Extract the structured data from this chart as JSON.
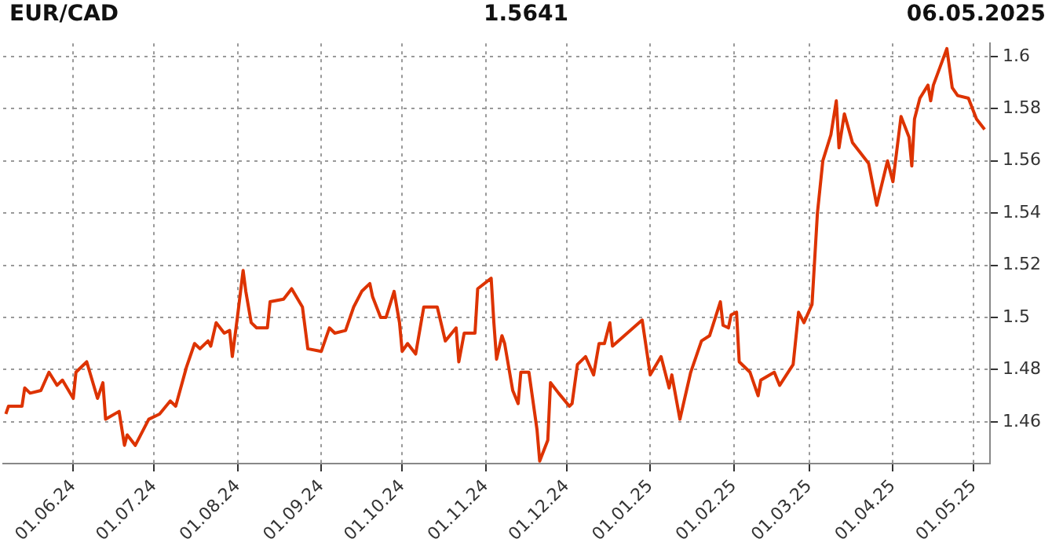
{
  "chart_data": {
    "type": "line",
    "title": "EUR/CAD",
    "subtitle": "1.5641",
    "annotations": [
      "06.05.2025"
    ],
    "x": [
      "2024-05-07",
      "2024-05-08",
      "2024-05-13",
      "2024-05-14",
      "2024-05-16",
      "2024-05-20",
      "2024-05-23",
      "2024-05-26",
      "2024-05-28",
      "2024-06-01",
      "2024-06-02",
      "2024-06-06",
      "2024-06-10",
      "2024-06-12",
      "2024-06-13",
      "2024-06-18",
      "2024-06-20",
      "2024-06-21",
      "2024-06-24",
      "2024-06-29",
      "2024-07-03",
      "2024-07-07",
      "2024-07-09",
      "2024-07-13",
      "2024-07-16",
      "2024-07-18",
      "2024-07-21",
      "2024-07-22",
      "2024-07-24",
      "2024-07-27",
      "2024-07-29",
      "2024-07-30",
      "2024-08-01",
      "2024-08-03",
      "2024-08-04",
      "2024-08-06",
      "2024-08-08",
      "2024-08-12",
      "2024-08-13",
      "2024-08-18",
      "2024-08-21",
      "2024-08-25",
      "2024-08-27",
      "2024-09-01",
      "2024-09-04",
      "2024-09-06",
      "2024-09-10",
      "2024-09-13",
      "2024-09-16",
      "2024-09-19",
      "2024-09-20",
      "2024-09-23",
      "2024-09-25",
      "2024-09-28",
      "2024-09-30",
      "2024-10-01",
      "2024-10-03",
      "2024-10-06",
      "2024-10-09",
      "2024-10-14",
      "2024-10-17",
      "2024-10-21",
      "2024-10-22",
      "2024-10-24",
      "2024-10-28",
      "2024-10-29",
      "2024-11-03",
      "2024-11-04",
      "2024-11-05",
      "2024-11-07",
      "2024-11-08",
      "2024-11-11",
      "2024-11-13",
      "2024-11-14",
      "2024-11-15",
      "2024-11-17",
      "2024-11-20",
      "2024-11-21",
      "2024-11-24",
      "2024-11-25",
      "2024-11-28",
      "2024-12-02",
      "2024-12-03",
      "2024-12-05",
      "2024-12-08",
      "2024-12-11",
      "2024-12-13",
      "2024-12-15",
      "2024-12-17",
      "2024-12-18",
      "2024-12-29",
      "2025-01-01",
      "2025-01-05",
      "2025-01-08",
      "2025-01-09",
      "2025-01-12",
      "2025-01-16",
      "2025-01-20",
      "2025-01-23",
      "2025-01-27",
      "2025-01-28",
      "2025-01-30",
      "2025-01-31",
      "2025-02-02",
      "2025-02-03",
      "2025-02-07",
      "2025-02-10",
      "2025-02-11",
      "2025-02-16",
      "2025-02-18",
      "2025-02-23",
      "2025-02-25",
      "2025-02-27",
      "2025-03-02",
      "2025-03-04",
      "2025-03-06",
      "2025-03-09",
      "2025-03-11",
      "2025-03-12",
      "2025-03-14",
      "2025-03-17",
      "2025-03-23",
      "2025-03-26",
      "2025-03-30",
      "2025-04-01",
      "2025-04-04",
      "2025-04-07",
      "2025-04-08",
      "2025-04-09",
      "2025-04-11",
      "2025-04-14",
      "2025-04-15",
      "2025-04-16",
      "2025-04-21",
      "2025-04-23",
      "2025-04-25",
      "2025-04-29",
      "2025-05-02",
      "2025-05-05"
    ],
    "series": [
      {
        "color": "#dd3300",
        "values": [
          1.463,
          1.466,
          1.466,
          1.473,
          1.471,
          1.472,
          1.479,
          1.474,
          1.476,
          1.469,
          1.479,
          1.483,
          1.469,
          1.475,
          1.461,
          1.464,
          1.451,
          1.455,
          1.451,
          1.461,
          1.463,
          1.468,
          1.466,
          1.481,
          1.49,
          1.488,
          1.491,
          1.489,
          1.498,
          1.494,
          1.495,
          1.485,
          1.501,
          1.518,
          1.51,
          1.498,
          1.496,
          1.496,
          1.506,
          1.507,
          1.511,
          1.504,
          1.488,
          1.487,
          1.496,
          1.494,
          1.495,
          1.504,
          1.51,
          1.513,
          1.508,
          1.5,
          1.5,
          1.51,
          1.498,
          1.487,
          1.49,
          1.486,
          1.504,
          1.504,
          1.491,
          1.496,
          1.483,
          1.494,
          1.494,
          1.511,
          1.515,
          1.498,
          1.484,
          1.493,
          1.49,
          1.472,
          1.467,
          1.479,
          1.479,
          1.479,
          1.457,
          1.445,
          1.453,
          1.475,
          1.471,
          1.466,
          1.467,
          1.482,
          1.485,
          1.478,
          1.49,
          1.49,
          1.498,
          1.489,
          1.499,
          1.478,
          1.485,
          1.473,
          1.478,
          1.461,
          1.479,
          1.491,
          1.493,
          1.506,
          1.497,
          1.496,
          1.501,
          1.502,
          1.483,
          1.479,
          1.47,
          1.476,
          1.479,
          1.474,
          1.482,
          1.502,
          1.498,
          1.505,
          1.54,
          1.56,
          1.57,
          1.583,
          1.565,
          1.578,
          1.567,
          1.559,
          1.543,
          1.56,
          1.552,
          1.577,
          1.569,
          1.558,
          1.576,
          1.584,
          1.589,
          1.583,
          1.589,
          1.603,
          1.588,
          1.585,
          1.584,
          1.576,
          1.572
        ]
      }
    ],
    "xlim": [
      "2024-05-06",
      "2025-05-07"
    ],
    "xticks": [
      {
        "value": "2024-06-01",
        "label": "01.06.24"
      },
      {
        "value": "2024-07-01",
        "label": "01.07.24"
      },
      {
        "value": "2024-08-01",
        "label": "01.08.24"
      },
      {
        "value": "2024-09-01",
        "label": "01.09.24"
      },
      {
        "value": "2024-10-01",
        "label": "01.10.24"
      },
      {
        "value": "2024-11-01",
        "label": "01.11.24"
      },
      {
        "value": "2024-12-01",
        "label": "01.12.24"
      },
      {
        "value": "2025-01-01",
        "label": "01.01.25"
      },
      {
        "value": "2025-02-01",
        "label": "01.02.25"
      },
      {
        "value": "2025-03-01",
        "label": "01.03.25"
      },
      {
        "value": "2025-04-01",
        "label": "01.04.25"
      },
      {
        "value": "2025-05-01",
        "label": "01.05.25"
      }
    ],
    "ylim": [
      1.444,
      1.605
    ],
    "yticks": [
      1.46,
      1.48,
      1.5,
      1.52,
      1.54,
      1.56,
      1.58,
      1.6
    ],
    "grid": true,
    "legend": false,
    "marker": "none",
    "line_style": "solid"
  }
}
